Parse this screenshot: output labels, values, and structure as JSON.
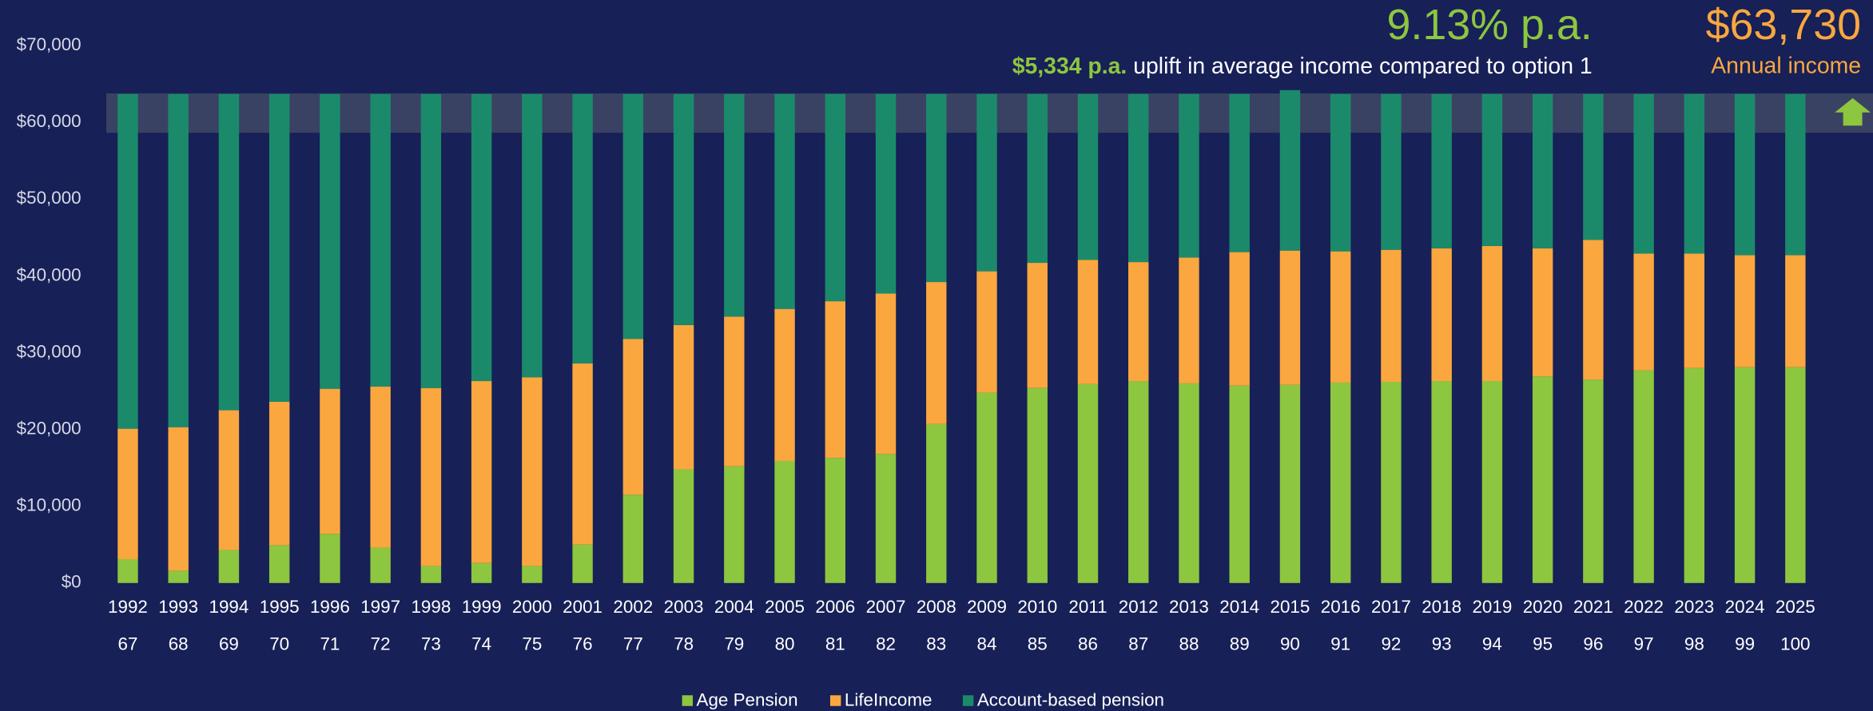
{
  "chart_data": {
    "type": "stacked-bar",
    "headline": "9.13% p.a.",
    "uplift": "$5,334 p.a.",
    "uplift_text": "uplift in average income compared to option 1",
    "income": "$63,730",
    "income_label": "Annual income",
    "categories": [
      "1992",
      "1993",
      "1994",
      "1995",
      "1996",
      "1997",
      "1998",
      "1999",
      "2000",
      "2001",
      "2002",
      "2003",
      "2004",
      "2005",
      "2006",
      "2007",
      "2008",
      "2009",
      "2010",
      "2011",
      "2012",
      "2013",
      "2014",
      "2015",
      "2016",
      "2017",
      "2018",
      "2019",
      "2020",
      "2021",
      "2022",
      "2023",
      "2024",
      "2025"
    ],
    "ages": [
      "67",
      "68",
      "69",
      "70",
      "71",
      "72",
      "73",
      "74",
      "75",
      "76",
      "77",
      "78",
      "79",
      "80",
      "81",
      "82",
      "83",
      "84",
      "85",
      "86",
      "87",
      "88",
      "89",
      "90",
      "91",
      "92",
      "93",
      "94",
      "95",
      "96",
      "97",
      "98",
      "99",
      "100"
    ],
    "series": [
      {
        "name": "Age Pension",
        "color": "#8dc63f",
        "values": [
          3100,
          1600,
          4300,
          4900,
          6400,
          4600,
          2200,
          2600,
          2200,
          5000,
          11500,
          14800,
          15200,
          15900,
          16300,
          16800,
          20700,
          24800,
          25400,
          25900,
          26300,
          26000,
          25700,
          25800,
          26100,
          26200,
          26300,
          26300,
          26900,
          26500,
          27700,
          28000,
          28100,
          28100
        ]
      },
      {
        "name": "LifeIncome",
        "color": "#f9a73e",
        "values": [
          17000,
          18700,
          18200,
          18700,
          18900,
          21000,
          23200,
          23700,
          24600,
          23600,
          20300,
          18800,
          19500,
          19800,
          20400,
          20900,
          18500,
          15800,
          16300,
          16200,
          15500,
          16400,
          17400,
          17500,
          17100,
          17200,
          17300,
          17600,
          16700,
          18200,
          15200,
          14900,
          14600,
          14600
        ]
      },
      {
        "name": "Account-based pension",
        "color": "#1b8a6b",
        "values": [
          43600,
          43400,
          41200,
          40100,
          38400,
          38100,
          38300,
          37400,
          36900,
          35100,
          31900,
          30100,
          29000,
          28000,
          27000,
          26000,
          24500,
          23100,
          22000,
          21600,
          21900,
          21300,
          20600,
          20900,
          20500,
          20300,
          20100,
          19800,
          20100,
          19000,
          20800,
          20800,
          21000,
          21000
        ]
      }
    ],
    "ylim": [
      0,
      70000
    ],
    "yticks": [
      {
        "value": 0,
        "label": "$0"
      },
      {
        "value": 10000,
        "label": "$10,000"
      },
      {
        "value": 20000,
        "label": "$20,000"
      },
      {
        "value": 30000,
        "label": "$30,000"
      },
      {
        "value": 40000,
        "label": "$40,000"
      },
      {
        "value": 50000,
        "label": "$50,000"
      },
      {
        "value": 60000,
        "label": "$60,000"
      },
      {
        "value": 70000,
        "label": "$70,000"
      }
    ]
  }
}
